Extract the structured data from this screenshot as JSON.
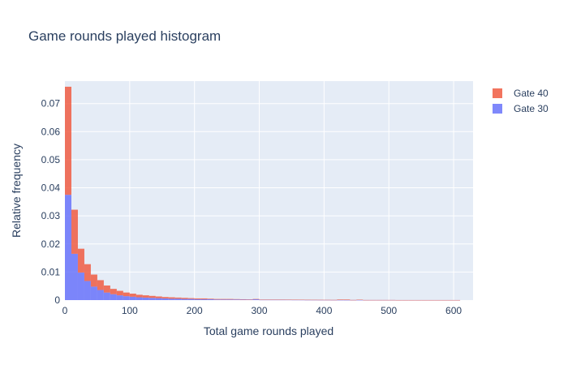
{
  "chart_data": {
    "type": "bar",
    "title": "Game rounds played histogram",
    "xlabel": "Total game rounds played",
    "ylabel": "Relative frequency",
    "xlim": [
      0,
      630
    ],
    "ylim": [
      0,
      0.078
    ],
    "bin_width": 10,
    "barmode": "stack",
    "grid": true,
    "legend_position": "top-right",
    "plot_bg": "#e5ecf6",
    "x_ticks": [
      0,
      100,
      200,
      300,
      400,
      500,
      600
    ],
    "x_tick_labels": [
      "0",
      "100",
      "200",
      "300",
      "400",
      "500",
      "600"
    ],
    "y_ticks": [
      0,
      0.01,
      0.02,
      0.03,
      0.04,
      0.05,
      0.06,
      0.07
    ],
    "y_tick_labels": [
      "0",
      "0.01",
      "0.02",
      "0.03",
      "0.04",
      "0.05",
      "0.06",
      "0.07"
    ],
    "bin_starts": [
      0,
      10,
      20,
      30,
      40,
      50,
      60,
      70,
      80,
      90,
      100,
      110,
      120,
      130,
      140,
      150,
      160,
      170,
      180,
      190,
      200,
      210,
      220,
      230,
      240,
      250,
      260,
      270,
      280,
      290,
      300,
      310,
      320,
      330,
      340,
      350,
      360,
      370,
      380,
      390,
      400,
      410,
      420,
      430,
      440,
      450,
      460,
      470,
      480,
      490,
      500,
      510,
      520,
      530,
      540,
      550,
      560,
      570,
      580,
      590,
      600
    ],
    "series": [
      {
        "name": "Gate 30",
        "color": "#636efa",
        "values": [
          0.0375,
          0.0165,
          0.0098,
          0.0068,
          0.0048,
          0.0036,
          0.0027,
          0.0021,
          0.0017,
          0.0014,
          0.0012,
          0.001,
          0.0009,
          0.0008,
          0.0007,
          0.0006,
          0.0005,
          0.0005,
          0.0004,
          0.0004,
          0.0003,
          0.0003,
          0.0003,
          0.0002,
          0.0002,
          0.0002,
          0.0002,
          0.00015,
          0.00015,
          0.0003,
          0.0001,
          0.0001,
          0.0001,
          0.0001,
          0.0001,
          8e-05,
          8e-05,
          6e-05,
          6e-05,
          5e-05,
          5e-05,
          4e-05,
          4e-05,
          3e-05,
          3e-05,
          3e-05,
          2e-05,
          2e-05,
          2e-05,
          2e-05,
          2e-05,
          1e-05,
          1e-05,
          1e-05,
          1e-05,
          1e-05,
          1e-05,
          1e-05,
          1e-05,
          1e-05,
          1e-05
        ]
      },
      {
        "name": "Gate 40",
        "color": "#ef553b",
        "values": [
          0.0385,
          0.0157,
          0.0085,
          0.006,
          0.0043,
          0.0035,
          0.0025,
          0.0019,
          0.0016,
          0.0013,
          0.0011,
          0.0009,
          0.0008,
          0.0007,
          0.0006,
          0.0005,
          0.0005,
          0.0004,
          0.0004,
          0.0003,
          0.0003,
          0.0003,
          0.0002,
          0.0002,
          0.0002,
          0.0002,
          0.00015,
          0.00015,
          0.0001,
          0.0001,
          0.0001,
          0.0001,
          0.0001,
          0.0001,
          8e-05,
          8e-05,
          6e-05,
          6e-05,
          5e-05,
          5e-05,
          4e-05,
          4e-05,
          0.0002,
          0.0002,
          3e-05,
          0.00015,
          2e-05,
          2e-05,
          2e-05,
          2e-05,
          2e-05,
          1e-05,
          1e-05,
          1e-05,
          1e-05,
          1e-05,
          1e-05,
          1e-05,
          1e-05,
          1e-05,
          1e-05
        ]
      }
    ],
    "legend": [
      {
        "name": "Gate 40",
        "color": "#ef553b"
      },
      {
        "name": "Gate 30",
        "color": "#636efa"
      }
    ]
  }
}
